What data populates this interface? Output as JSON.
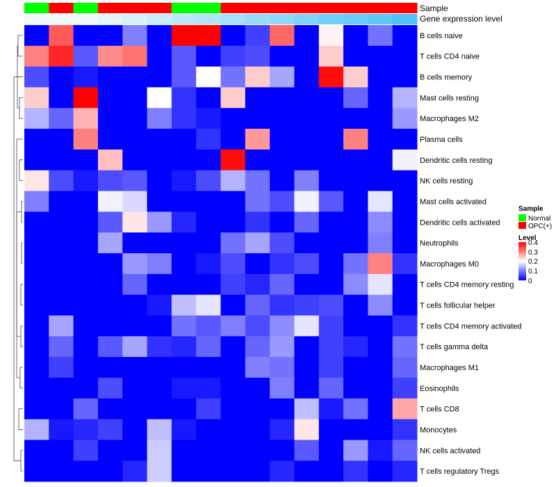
{
  "chart_data": {
    "type": "heatmap",
    "annotation_tracks": {
      "sample": {
        "label": "Sample",
        "values": [
          "Normal",
          "OPC(+)",
          "Normal",
          "OPC(+)",
          "OPC(+)",
          "OPC(+)",
          "Normal",
          "Normal",
          "OPC(+)",
          "OPC(+)",
          "OPC(+)",
          "OPC(+)",
          "OPC(+)",
          "OPC(+)",
          "OPC(+)",
          "OPC(+)"
        ]
      },
      "gene_expression": {
        "label": "Gene expression level",
        "values": [
          0,
          0,
          0,
          1,
          2,
          3,
          4,
          5,
          6,
          7,
          8,
          9,
          10,
          11,
          12,
          13
        ]
      }
    },
    "rows": [
      "B cells naive",
      "T cells CD4 naive",
      "B cells memory",
      "Mast cells resting",
      "Macrophages M2",
      "Plasma cells",
      "Dendritic cells resting",
      "NK cells resting",
      "Mast cells activated",
      "Dendritic cells activated",
      "Neutrophils",
      "Macrophages M0",
      "T cells CD4 memory resting",
      "T cells follicular helper",
      "T cells CD4 memory activated",
      "T cells gamma delta",
      "Macrophages M1",
      "Eosinophils",
      "T cells CD8",
      "Monocytes",
      "NK cells activated",
      "T cells regulatory  Tregs"
    ],
    "values": [
      [
        0.0,
        0.33,
        0.0,
        0.0,
        0.1,
        0.0,
        0.4,
        0.4,
        0.0,
        0.05,
        0.32,
        0.0,
        0.21,
        0.0,
        0.09,
        0.0
      ],
      [
        0.3,
        0.37,
        0.07,
        0.29,
        0.31,
        0.0,
        0.07,
        0.0,
        0.05,
        0.06,
        0.0,
        0.0,
        0.24,
        0.0,
        0.0,
        0.0
      ],
      [
        0.06,
        0.0,
        0.02,
        0.0,
        0.0,
        0.0,
        0.07,
        0.2,
        0.09,
        0.24,
        0.13,
        0.0,
        0.39,
        0.24,
        0.0,
        0.0
      ],
      [
        0.24,
        0.0,
        0.4,
        0.0,
        0.0,
        0.2,
        0.04,
        0.0,
        0.24,
        0.0,
        0.0,
        0.0,
        0.0,
        0.08,
        0.0,
        0.14
      ],
      [
        0.14,
        0.08,
        0.26,
        0.0,
        0.0,
        0.1,
        0.04,
        0.02,
        0.0,
        0.0,
        0.0,
        0.0,
        0.0,
        0.0,
        0.0,
        0.12
      ],
      [
        0.0,
        0.0,
        0.3,
        0.0,
        0.0,
        0.0,
        0.0,
        0.04,
        0.0,
        0.28,
        0.0,
        0.0,
        0.0,
        0.3,
        0.0,
        0.0
      ],
      [
        0.0,
        0.0,
        0.0,
        0.25,
        0.0,
        0.0,
        0.0,
        0.0,
        0.39,
        0.0,
        0.0,
        0.0,
        0.0,
        0.0,
        0.0,
        0.19
      ],
      [
        0.22,
        0.06,
        0.02,
        0.06,
        0.07,
        0.0,
        0.02,
        0.06,
        0.14,
        0.09,
        0.0,
        0.1,
        0.0,
        0.0,
        0.0,
        0.0
      ],
      [
        0.1,
        0.0,
        0.0,
        0.19,
        0.17,
        0.0,
        0.0,
        0.0,
        0.0,
        0.09,
        0.06,
        0.19,
        0.07,
        0.0,
        0.18,
        0.0
      ],
      [
        0.0,
        0.0,
        0.0,
        0.07,
        0.22,
        0.12,
        0.03,
        0.0,
        0.0,
        0.04,
        0.0,
        0.08,
        0.0,
        0.0,
        0.11,
        0.0
      ],
      [
        0.0,
        0.0,
        0.0,
        0.13,
        0.0,
        0.0,
        0.0,
        0.0,
        0.09,
        0.13,
        0.06,
        0.0,
        0.0,
        0.0,
        0.1,
        0.0
      ],
      [
        0.0,
        0.0,
        0.0,
        0.0,
        0.12,
        0.1,
        0.0,
        0.02,
        0.06,
        0.0,
        0.04,
        0.06,
        0.0,
        0.09,
        0.3,
        0.04
      ],
      [
        0.0,
        0.0,
        0.0,
        0.0,
        0.08,
        0.0,
        0.0,
        0.0,
        0.05,
        0.03,
        0.08,
        0.0,
        0.0,
        0.11,
        0.18,
        0.0
      ],
      [
        0.0,
        0.0,
        0.0,
        0.0,
        0.0,
        0.02,
        0.15,
        0.18,
        0.0,
        0.08,
        0.04,
        0.05,
        0.06,
        0.0,
        0.11,
        0.0
      ],
      [
        0.0,
        0.13,
        0.0,
        0.0,
        0.0,
        0.0,
        0.09,
        0.07,
        0.1,
        0.06,
        0.11,
        0.18,
        0.05,
        0.0,
        0.0,
        0.04
      ],
      [
        0.0,
        0.08,
        0.0,
        0.07,
        0.13,
        0.04,
        0.03,
        0.08,
        0.0,
        0.08,
        0.12,
        0.0,
        0.05,
        0.03,
        0.0,
        0.09
      ],
      [
        0.0,
        0.05,
        0.0,
        0.0,
        0.0,
        0.0,
        0.0,
        0.0,
        0.0,
        0.1,
        0.09,
        0.0,
        0.05,
        0.0,
        0.0,
        0.08
      ],
      [
        0.0,
        0.0,
        0.0,
        0.06,
        0.0,
        0.0,
        0.02,
        0.02,
        0.0,
        0.0,
        0.1,
        0.0,
        0.08,
        0.0,
        0.0,
        0.05
      ],
      [
        0.0,
        0.0,
        0.08,
        0.0,
        0.0,
        0.0,
        0.0,
        0.05,
        0.0,
        0.0,
        0.0,
        0.15,
        0.02,
        0.09,
        0.0,
        0.27
      ],
      [
        0.14,
        0.02,
        0.03,
        0.05,
        0.0,
        0.15,
        0.02,
        0.0,
        0.0,
        0.0,
        0.03,
        0.22,
        0.0,
        0.0,
        0.0,
        0.04
      ],
      [
        0.0,
        0.0,
        0.05,
        0.0,
        0.0,
        0.16,
        0.0,
        0.0,
        0.0,
        0.0,
        0.0,
        0.07,
        0.0,
        0.12,
        0.02,
        0.08
      ],
      [
        0.0,
        0.0,
        0.0,
        0.0,
        0.03,
        0.16,
        0.0,
        0.0,
        0.0,
        0.0,
        0.03,
        0.0,
        0.0,
        0.04,
        0.0,
        0.03
      ]
    ],
    "legend": {
      "sample_title": "Sample",
      "sample_items": [
        {
          "label": "Normal",
          "color": "#00ff00"
        },
        {
          "label": "OPC(+)",
          "color": "#ff0000"
        }
      ],
      "level_title": "Level",
      "level_ticks": [
        "0.4",
        "0.3",
        "0.2",
        "0.1",
        "0"
      ],
      "level_range": [
        0,
        0.4
      ],
      "placement": "right"
    },
    "colors": {
      "low": "#0000ff",
      "mid": "#ffffff",
      "high": "#ff0000",
      "track_light": "#f0f8fc",
      "track_dark": "#4fc3f7"
    },
    "dendrogram": "rows"
  }
}
